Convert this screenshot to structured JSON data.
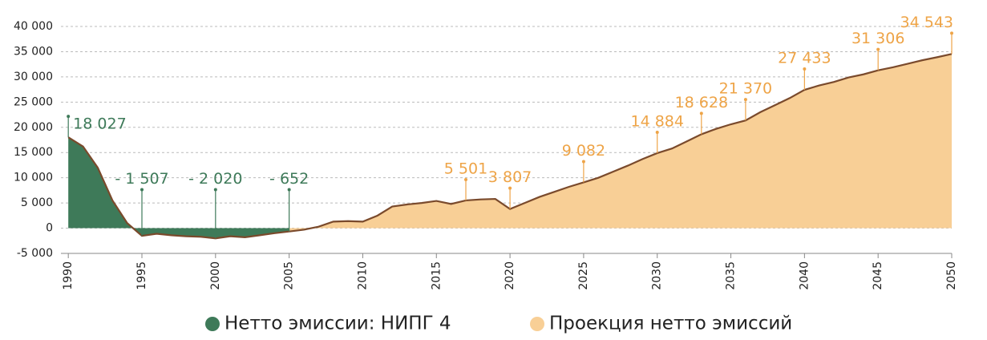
{
  "chart_data": {
    "type": "area",
    "xlim": [
      1989.5,
      2050
    ],
    "xticks": [
      1990,
      1995,
      2000,
      2005,
      2010,
      2015,
      2020,
      2025,
      2030,
      2035,
      2040,
      2045,
      2050
    ],
    "ylim": [
      -5000,
      40000
    ],
    "yticks": [
      {
        "value": -5000,
        "label": "-5 000"
      },
      0,
      {
        "value": 5000,
        "label": "5 000"
      },
      {
        "value": 10000,
        "label": "10 000"
      },
      {
        "value": 15000,
        "label": "15 000"
      },
      {
        "value": 20000,
        "label": "20 000"
      },
      {
        "value": 25000,
        "label": "25 000"
      },
      {
        "value": 30000,
        "label": "30 000"
      },
      {
        "value": 35000,
        "label": "35 000"
      },
      {
        "value": 40000,
        "label": "40 000"
      }
    ],
    "grid": true,
    "line_color": "#7a4a2c",
    "legend": "bottom",
    "series": [
      {
        "name": "Нетто эмиссии: НИПГ 4",
        "color": "#3e7a59",
        "label_color": "#3e7a59",
        "x": [
          1990,
          1991,
          1992,
          1993,
          1994,
          1995,
          1996,
          1997,
          1998,
          1999,
          2000,
          2001,
          2002,
          2003,
          2004,
          2005
        ],
        "values": [
          18027,
          16200,
          12000,
          5500,
          1000,
          -1507,
          -1100,
          -1400,
          -1600,
          -1700,
          -2020,
          -1600,
          -1800,
          -1400,
          -1000,
          -652
        ],
        "value_labels": [
          "18 027",
          null,
          null,
          null,
          null,
          "- 1 507",
          null,
          null,
          null,
          null,
          "- 2 020",
          null,
          null,
          null,
          null,
          "- 652"
        ]
      },
      {
        "name": "Проекция нетто эмиссий",
        "color": "#f8cf96",
        "label_color": "#eea447",
        "x": [
          2005,
          2006,
          2007,
          2008,
          2009,
          2010,
          2011,
          2012,
          2013,
          2014,
          2015,
          2016,
          2017,
          2018,
          2019,
          2020,
          2021,
          2022,
          2023,
          2024,
          2025,
          2026,
          2027,
          2028,
          2029,
          2030,
          2031,
          2032,
          2033,
          2034,
          2035,
          2036,
          2037,
          2038,
          2039,
          2040,
          2041,
          2042,
          2043,
          2044,
          2045,
          2046,
          2047,
          2048,
          2049,
          2050
        ],
        "values": [
          -652,
          -300,
          300,
          1300,
          1400,
          1300,
          2500,
          4300,
          4700,
          5000,
          5400,
          4800,
          5501,
          5700,
          5800,
          3807,
          5000,
          6200,
          7200,
          8200,
          9082,
          10000,
          11200,
          12400,
          13700,
          14884,
          15800,
          17200,
          18628,
          19700,
          20600,
          21370,
          23000,
          24400,
          25800,
          27433,
          28300,
          29000,
          29900,
          30500,
          31306,
          31900,
          32600,
          33300,
          33900,
          34543
        ],
        "value_labels": [
          null,
          null,
          null,
          null,
          null,
          null,
          null,
          null,
          null,
          null,
          null,
          null,
          "5 501",
          null,
          null,
          "3 807",
          null,
          null,
          null,
          null,
          "9 082",
          null,
          null,
          null,
          null,
          "14 884",
          null,
          null,
          "18 628",
          null,
          null,
          "21 370",
          null,
          null,
          null,
          "27 433",
          null,
          null,
          null,
          null,
          "31 306",
          null,
          null,
          null,
          null,
          "34 543"
        ]
      }
    ]
  }
}
